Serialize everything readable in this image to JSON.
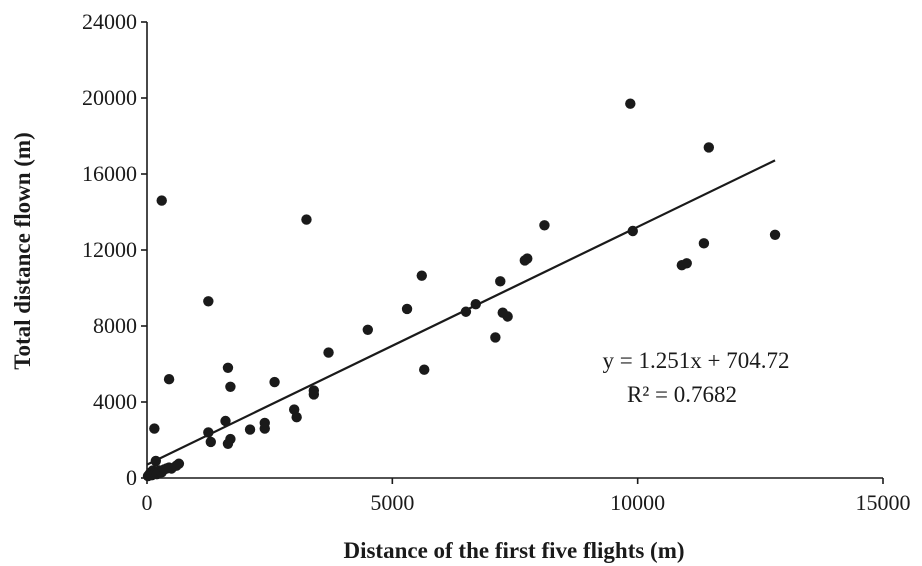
{
  "chart_data": {
    "type": "scatter",
    "xlabel": "Distance of the first five flights (m)",
    "ylabel": "Total distance flown (m)",
    "xlim": [
      0,
      15000
    ],
    "ylim": [
      0,
      24000
    ],
    "x_ticks": [
      "0",
      "5000",
      "10000",
      "15000"
    ],
    "y_ticks": [
      "0",
      "4000",
      "8000",
      "12000",
      "16000",
      "20000",
      "24000"
    ],
    "grid": false,
    "legend": "none",
    "trendline": {
      "slope": 1.251,
      "intercept": 704.72,
      "x_range": [
        0,
        12800
      ],
      "equation_label": "y = 1.251x + 704.72",
      "r2_label": "R² = 0.7682"
    },
    "series": [
      {
        "x": [
          20,
          50,
          80,
          100,
          120,
          150,
          180,
          200,
          250,
          300,
          350,
          400,
          450,
          500,
          600,
          650,
          150,
          180,
          300,
          450,
          1250,
          1250,
          1300,
          1600,
          1650,
          1700,
          1650,
          1700,
          2100,
          2400,
          2400,
          2600,
          3000,
          3050,
          3250,
          3400,
          3400,
          3700,
          4500,
          5300,
          5600,
          5650,
          6500,
          6700,
          7100,
          7200,
          7250,
          7350,
          7700,
          7750,
          8100,
          9850,
          9900,
          10900,
          11000,
          11350,
          11450,
          12800
        ],
        "y": [
          100,
          200,
          300,
          150,
          400,
          250,
          350,
          200,
          400,
          300,
          450,
          500,
          550,
          500,
          650,
          750,
          2600,
          900,
          14600,
          5200,
          9300,
          2400,
          1900,
          3000,
          1800,
          2050,
          5800,
          4800,
          2550,
          2600,
          2900,
          5050,
          3600,
          3200,
          13600,
          4400,
          4600,
          6600,
          7800,
          8900,
          10650,
          5700,
          8750,
          9150,
          7400,
          10350,
          8700,
          8500,
          11450,
          11550,
          13300,
          19700,
          13000,
          11200,
          11300,
          12350,
          17400,
          12800
        ]
      }
    ]
  }
}
